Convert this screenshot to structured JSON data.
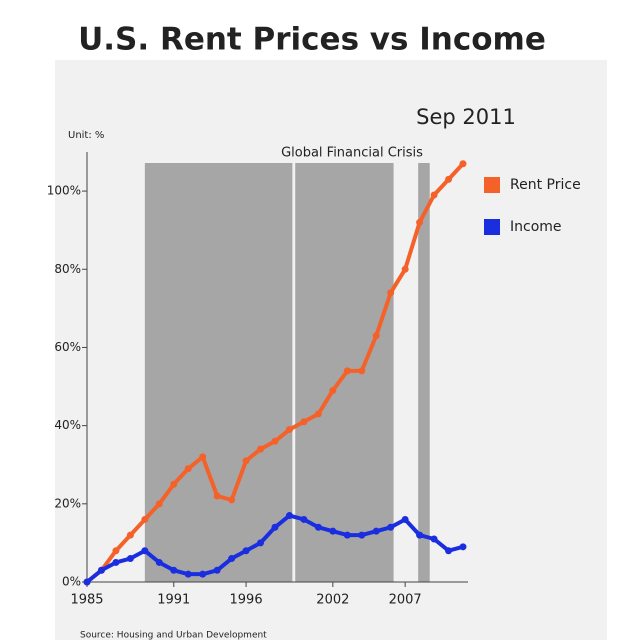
{
  "chart_data": {
    "type": "line",
    "title": "U.S. Rent Prices vs Income",
    "annotations": {
      "date": "Sep 2011",
      "crisis": "Global Financial Crisis",
      "unit": "Unit: %",
      "source": "Source: Housing and Urban Development"
    },
    "x": [
      1985,
      1986,
      1987,
      1988,
      1989,
      1990,
      1991,
      1992,
      1993,
      1994,
      1995,
      1996,
      1997,
      1998,
      1999,
      2000,
      2001,
      2002,
      2003,
      2004,
      2005,
      2006,
      2007,
      2008,
      2009,
      2010,
      2011
    ],
    "series": [
      {
        "name": "Rent Price",
        "color": "#f4622a",
        "values": [
          0,
          3,
          8,
          12,
          16,
          20,
          25,
          29,
          32,
          22,
          21,
          31,
          34,
          36,
          39,
          41,
          43,
          49,
          54,
          54,
          63,
          74,
          80,
          92,
          99,
          103,
          107
        ]
      },
      {
        "name": "Income",
        "color": "#1a2ee0",
        "values": [
          0,
          3,
          5,
          6,
          8,
          5,
          3,
          2,
          2,
          3,
          6,
          8,
          10,
          14,
          17,
          16,
          14,
          13,
          12,
          12,
          13,
          14,
          16,
          12,
          11,
          8,
          9
        ]
      }
    ],
    "shaded_bands": [
      [
        1989,
        1999.2
      ],
      [
        1999.4,
        2006.2
      ],
      [
        2007.9,
        2008.7
      ]
    ],
    "band_color": "#a6a6a6",
    "xlim": [
      1985,
      2011
    ],
    "xticks": [
      1985,
      1991,
      1996,
      2002,
      2007
    ],
    "ylim": [
      0,
      110
    ],
    "yticks": [
      {
        "value": 0,
        "label": "0%"
      },
      {
        "value": 20,
        "label": "20%"
      },
      {
        "value": 40,
        "label": "40%"
      },
      {
        "value": 60,
        "label": "60%"
      },
      {
        "value": 80,
        "label": "80%"
      },
      {
        "value": 100,
        "label": "100%"
      }
    ],
    "legend": "right"
  }
}
